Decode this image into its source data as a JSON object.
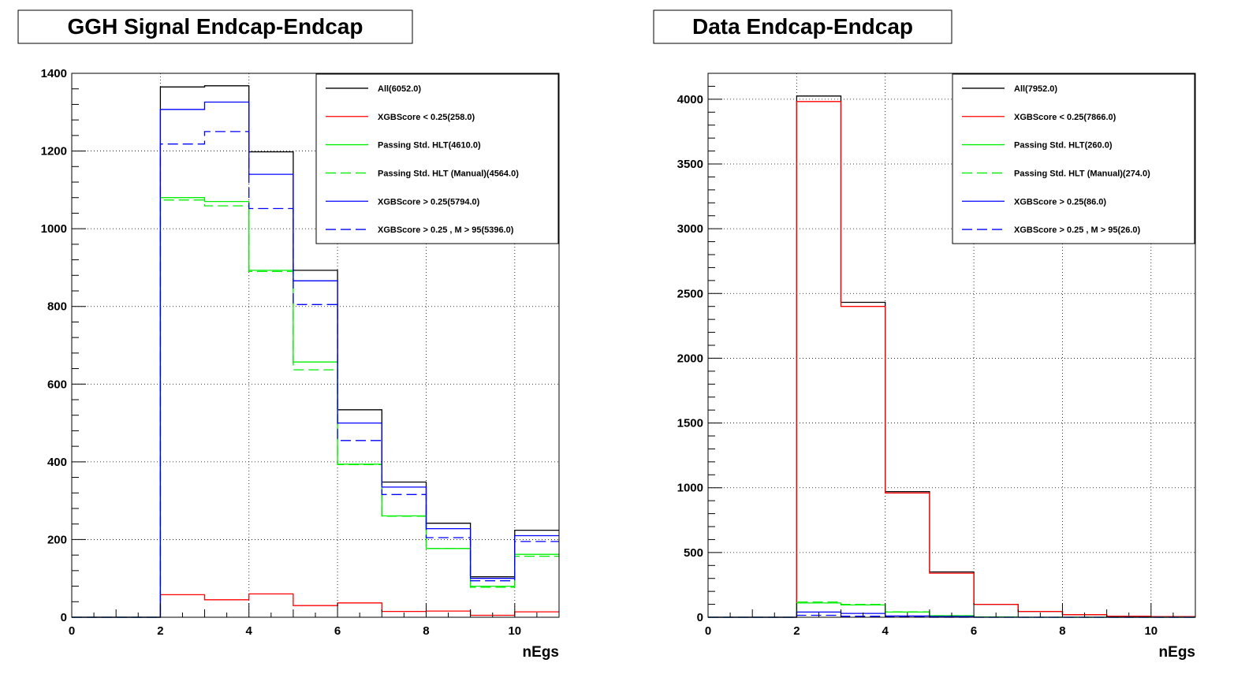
{
  "chart_data": [
    {
      "type": "step-histogram",
      "title": "GGH Signal Endcap-Endcap",
      "xlabel": "nEgs",
      "ylabel": "",
      "xlim": [
        0,
        11
      ],
      "ylim": [
        0,
        1400
      ],
      "xticks": [
        0,
        2,
        4,
        6,
        8,
        10
      ],
      "yticks": [
        0,
        200,
        400,
        600,
        800,
        1000,
        1200,
        1400
      ],
      "grid": true,
      "legend_position": "top-right",
      "bin_edges": [
        0,
        1,
        2,
        3,
        4,
        5,
        6,
        7,
        8,
        9,
        10,
        11
      ],
      "series": [
        {
          "name": "All(6052.0)",
          "color": "#000000",
          "dashed": false,
          "values": [
            0,
            0,
            1365,
            1368,
            1198,
            893,
            534,
            348,
            242,
            104,
            224
          ]
        },
        {
          "name": "XGBScore < 0.25(258.0)",
          "color": "#ff0000",
          "dashed": false,
          "values": [
            0,
            0,
            58,
            45,
            60,
            30,
            37,
            15,
            16,
            5,
            14
          ]
        },
        {
          "name": "Passing Std. HLT(4610.0)",
          "color": "#00ee00",
          "dashed": false,
          "values": [
            0,
            0,
            1080,
            1070,
            893,
            657,
            394,
            261,
            177,
            80,
            162
          ]
        },
        {
          "name": "Passing Std. HLT (Manual)(4564.0)",
          "color": "#00ee00",
          "dashed": true,
          "values": [
            0,
            0,
            1074,
            1059,
            890,
            637,
            393,
            260,
            177,
            77,
            157
          ]
        },
        {
          "name": "XGBScore > 0.25(5794.0)",
          "color": "#0000ff",
          "dashed": false,
          "values": [
            0,
            0,
            1307,
            1326,
            1140,
            866,
            500,
            335,
            228,
            100,
            210
          ]
        },
        {
          "name": "XGBScore > 0.25 , M > 95(5396.0)",
          "color": "#0000ff",
          "dashed": true,
          "values": [
            0,
            0,
            1218,
            1250,
            1052,
            805,
            455,
            316,
            205,
            94,
            195
          ]
        }
      ]
    },
    {
      "type": "step-histogram",
      "title": "Data Endcap-Endcap",
      "xlabel": "nEgs",
      "ylabel": "",
      "xlim": [
        0,
        11
      ],
      "ylim": [
        0,
        4200
      ],
      "xticks": [
        0,
        2,
        4,
        6,
        8,
        10
      ],
      "yticks": [
        0,
        500,
        1000,
        1500,
        2000,
        2500,
        3000,
        3500,
        4000
      ],
      "grid": true,
      "legend_position": "top-right",
      "bin_edges": [
        0,
        1,
        2,
        3,
        4,
        5,
        6,
        7,
        8,
        9,
        10,
        11
      ],
      "series": [
        {
          "name": "All(7952.0)",
          "color": "#000000",
          "dashed": false,
          "values": [
            0,
            0,
            4025,
            2432,
            970,
            350,
            100,
            45,
            20,
            8,
            5
          ]
        },
        {
          "name": "XGBScore < 0.25(7866.0)",
          "color": "#ff0000",
          "dashed": false,
          "values": [
            0,
            0,
            3982,
            2400,
            960,
            340,
            100,
            45,
            20,
            8,
            5
          ]
        },
        {
          "name": "Passing Std. HLT(260.0)",
          "color": "#00ee00",
          "dashed": false,
          "values": [
            0,
            0,
            110,
            95,
            40,
            12,
            3,
            0,
            0,
            0,
            0
          ]
        },
        {
          "name": "Passing Std. HLT (Manual)(274.0)",
          "color": "#00ee00",
          "dashed": true,
          "values": [
            0,
            0,
            118,
            100,
            42,
            12,
            2,
            0,
            0,
            0,
            0
          ]
        },
        {
          "name": "XGBScore > 0.25(86.0)",
          "color": "#0000ff",
          "dashed": false,
          "values": [
            0,
            0,
            40,
            30,
            10,
            6,
            0,
            0,
            0,
            0,
            0
          ]
        },
        {
          "name": "XGBScore > 0.25 , M > 95(26.0)",
          "color": "#0000ff",
          "dashed": true,
          "values": [
            0,
            0,
            15,
            8,
            3,
            0,
            0,
            0,
            0,
            0,
            0
          ]
        }
      ]
    }
  ]
}
